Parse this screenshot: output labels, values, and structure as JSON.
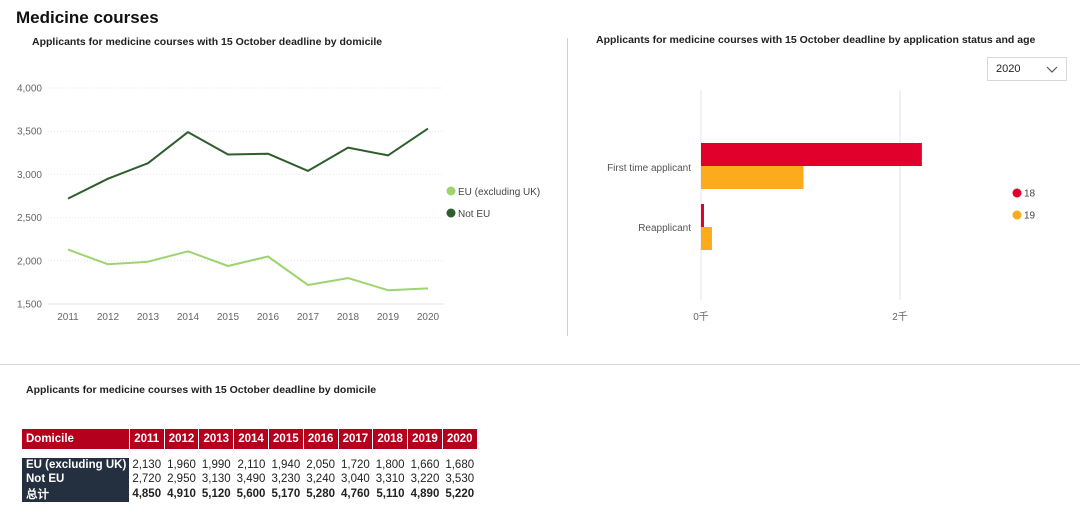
{
  "page": {
    "title": "Medicine courses"
  },
  "line_chart_title": "Applicants for medicine courses with 15 October deadline  by domicile",
  "bar_chart_title": "Applicants for medicine courses with 15 October deadline  by application status and age",
  "table_title": "Applicants for medicine courses with 15 October deadline  by domicile",
  "year_filter": {
    "selected": "2020",
    "icon": "chevron-down-icon"
  },
  "colors": {
    "eu": "#9ed46f",
    "not_eu": "#2e5e2e",
    "age18": "#e0002b",
    "age19": "#fbab1b",
    "table_header": "#b5001d",
    "table_rowhead": "#24303f"
  },
  "chart_data": [
    {
      "type": "line",
      "title": "Applicants for medicine courses with 15 October deadline  by domicile",
      "x": [
        "2011",
        "2012",
        "2013",
        "2014",
        "2015",
        "2016",
        "2017",
        "2018",
        "2019",
        "2020"
      ],
      "ylim": [
        1500,
        4000
      ],
      "yticks": [
        1500,
        2000,
        2500,
        3000,
        3500,
        4000
      ],
      "ytick_labels": [
        "1,500",
        "2,000",
        "2,500",
        "3,000",
        "3,500",
        "4,000"
      ],
      "grid": true,
      "legend": "right",
      "series": [
        {
          "name": "EU (excluding UK)",
          "values": [
            2130,
            1960,
            1990,
            2110,
            1940,
            2050,
            1720,
            1800,
            1660,
            1680
          ]
        },
        {
          "name": "Not EU",
          "values": [
            2720,
            2950,
            3130,
            3490,
            3230,
            3240,
            3040,
            3310,
            3220,
            3530
          ]
        }
      ]
    },
    {
      "type": "bar",
      "orientation": "horizontal",
      "title": "Applicants for medicine courses with 15 October deadline  by application status and age",
      "categories": [
        "First time applicant",
        "Reapplicant"
      ],
      "xlim": [
        0,
        2400
      ],
      "xticks": [
        0,
        2000
      ],
      "xtick_labels": [
        "0千",
        "2千"
      ],
      "grid": true,
      "legend": "right",
      "series": [
        {
          "name": "18",
          "values": [
            2220,
            30
          ]
        },
        {
          "name": "19",
          "values": [
            1030,
            110
          ]
        }
      ]
    },
    {
      "type": "table",
      "title": "Applicants for medicine courses with 15 October deadline  by domicile",
      "columns": [
        "Domicile",
        "2011",
        "2012",
        "2013",
        "2014",
        "2015",
        "2016",
        "2017",
        "2018",
        "2019",
        "2020"
      ],
      "rows": [
        {
          "label": "EU (excluding UK)",
          "values": [
            "2,130",
            "1,960",
            "1,990",
            "2,110",
            "1,940",
            "2,050",
            "1,720",
            "1,800",
            "1,660",
            "1,680"
          ]
        },
        {
          "label": "Not EU",
          "values": [
            "2,720",
            "2,950",
            "3,130",
            "3,490",
            "3,230",
            "3,240",
            "3,040",
            "3,310",
            "3,220",
            "3,530"
          ]
        },
        {
          "label": "总计",
          "values": [
            "4,850",
            "4,910",
            "5,120",
            "5,600",
            "5,170",
            "5,280",
            "4,760",
            "5,110",
            "4,890",
            "5,220"
          ],
          "total": true
        }
      ]
    }
  ]
}
